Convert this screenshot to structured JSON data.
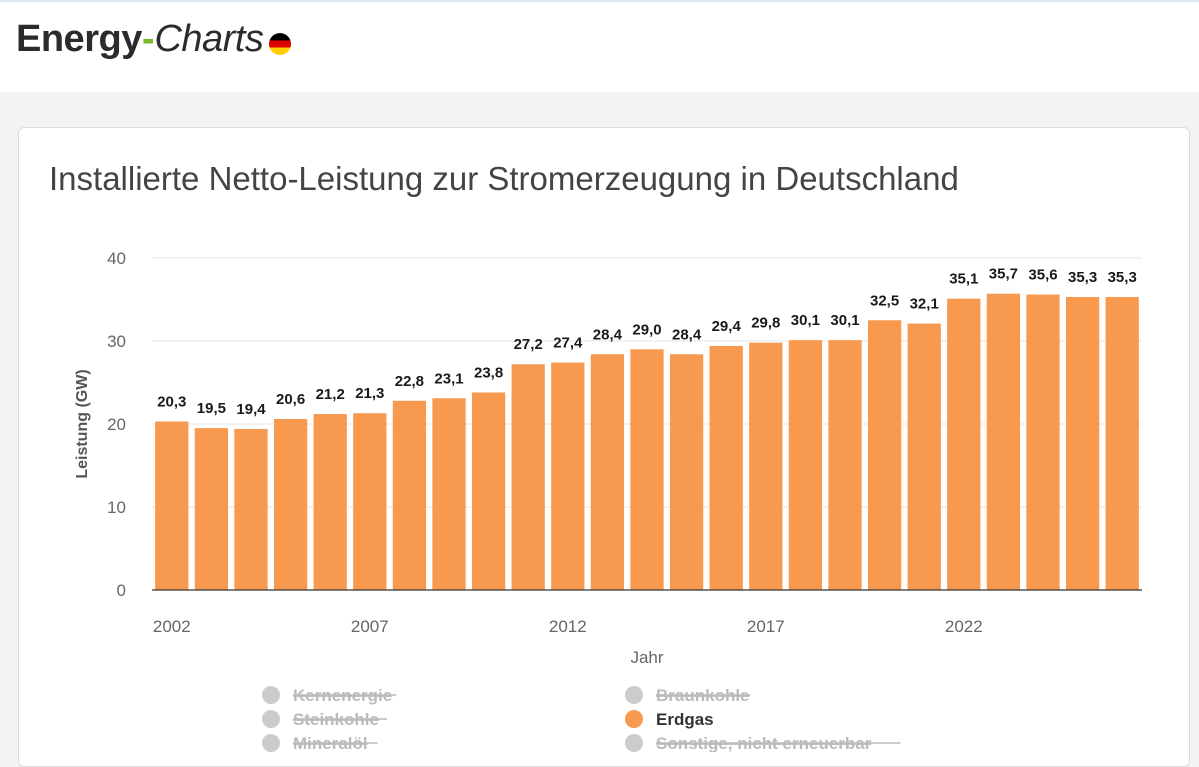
{
  "header": {
    "logo_part1": "Energy",
    "logo_dash": "-",
    "logo_part2": "Charts"
  },
  "card": {
    "title": "Installierte Netto-Leistung zur Stromerzeugung in Deutschland"
  },
  "colors": {
    "bar": "#f7994f",
    "gridline": "#e6e6e6",
    "legend_disabled": "#cccccc",
    "legend_disabled_text": "#bbbbbb",
    "legend_active_text": "#333333"
  },
  "chart_data": {
    "type": "bar",
    "title": "Installierte Netto-Leistung zur Stromerzeugung in Deutschland",
    "xlabel": "Jahr",
    "ylabel": "Leistung (GW)",
    "ylim": [
      0,
      40
    ],
    "yticks": [
      0,
      10,
      20,
      30,
      40
    ],
    "xticks": [
      "2002",
      "2007",
      "2012",
      "2017",
      "2022"
    ],
    "grid": true,
    "legend_position": "bottom",
    "categories": [
      "2002",
      "2003",
      "2004",
      "2005",
      "2006",
      "2007",
      "2008",
      "2009",
      "2010",
      "2011",
      "2012",
      "2013",
      "2014",
      "2015",
      "2016",
      "2017",
      "2018",
      "2019",
      "2020",
      "2021",
      "2022",
      "2023",
      "2024",
      "2025",
      "2026"
    ],
    "series": [
      {
        "name": "Erdgas",
        "color": "#f7994f",
        "values": [
          20.3,
          19.5,
          19.4,
          20.6,
          21.2,
          21.3,
          22.8,
          23.1,
          23.8,
          27.2,
          27.4,
          28.4,
          29.0,
          28.4,
          29.4,
          29.8,
          30.1,
          30.1,
          32.5,
          32.1,
          35.1,
          35.7,
          35.6,
          35.3,
          35.3
        ],
        "labels": [
          "20,3",
          "19,5",
          "19,4",
          "20,6",
          "21,2",
          "21,3",
          "22,8",
          "23,1",
          "23,8",
          "27,2",
          "27,4",
          "28,4",
          "29,0",
          "28,4",
          "29,4",
          "29,8",
          "30,1",
          "30,1",
          "32,5",
          "32,1",
          "35,1",
          "35,7",
          "35,6",
          "35,3",
          "35,3"
        ]
      }
    ],
    "legend": [
      {
        "label": "Kernenergie",
        "active": false
      },
      {
        "label": "Braunkohle",
        "active": false
      },
      {
        "label": "Steinkohle",
        "active": false
      },
      {
        "label": "Erdgas",
        "active": true
      },
      {
        "label": "Mineralöl",
        "active": false
      },
      {
        "label": "Sonstige, nicht erneuerbar",
        "active": false
      }
    ]
  }
}
